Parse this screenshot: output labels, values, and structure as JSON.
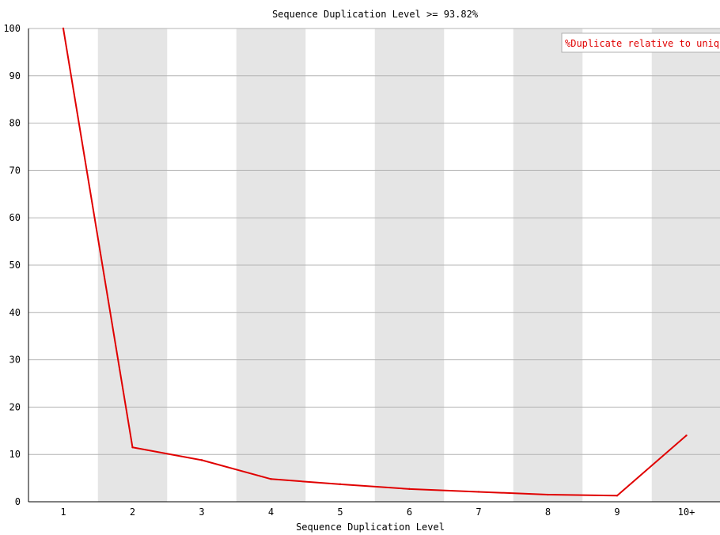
{
  "chart_data": {
    "type": "line",
    "title": "Sequence Duplication Level >= 93.82%",
    "xlabel": "Sequence Duplication Level",
    "ylabel": "",
    "categories": [
      "1",
      "2",
      "3",
      "4",
      "5",
      "6",
      "7",
      "8",
      "9",
      "10+"
    ],
    "yticks": [
      "0",
      "10",
      "20",
      "30",
      "40",
      "50",
      "60",
      "70",
      "80",
      "90",
      "100"
    ],
    "ylim": [
      0,
      100
    ],
    "grid": true,
    "alternating_bands": true,
    "legend_position": "top-right",
    "series": [
      {
        "name": "%Duplicate relative to unique",
        "color": "#e00000",
        "values": [
          100,
          11.5,
          8.8,
          4.8,
          3.7,
          2.7,
          2.1,
          1.5,
          1.3,
          14.0
        ]
      }
    ]
  }
}
